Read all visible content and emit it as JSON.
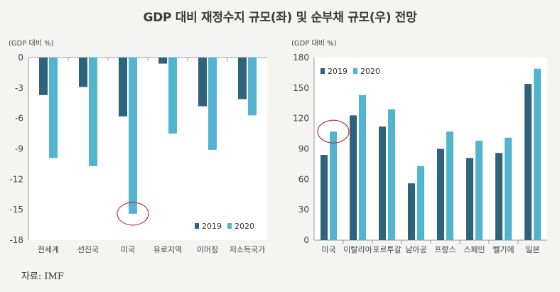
{
  "title": "GDP 대비 재정수지 규모(좌) 및 순부채 규모(우) 전망",
  "source": "자료: IMF",
  "colors": {
    "s2019": "#2f627c",
    "s2020": "#52b5cf",
    "highlight": "#c0303a"
  },
  "chart_data": [
    {
      "type": "bar",
      "unit_label": "(GDP 대비 %)",
      "categories": [
        "전세계",
        "선진국",
        "미국",
        "유로지역",
        "이머징",
        "저소득국가"
      ],
      "series": [
        {
          "name": "2019",
          "values": [
            -3.7,
            -2.9,
            -5.8,
            -0.6,
            -4.8,
            -4.1
          ]
        },
        {
          "name": "2020",
          "values": [
            -9.9,
            -10.7,
            -15.4,
            -7.5,
            -9.1,
            -5.7
          ]
        }
      ],
      "ylim": [
        -18,
        0
      ],
      "yticks": [
        0,
        -3,
        -6,
        -9,
        -12,
        -15,
        -18
      ],
      "legend_position": "bottom-right",
      "annotation": {
        "category": "미국",
        "series": "2020",
        "shape": "circle"
      }
    },
    {
      "type": "bar",
      "unit_label": "(GDP 대비 %)",
      "categories": [
        "미국",
        "이탈리아",
        "포르투갈",
        "남아공",
        "프랑스",
        "스페인",
        "벨기에",
        "일본"
      ],
      "series": [
        {
          "name": "2019",
          "values": [
            84,
            123,
            112,
            56,
            90,
            81,
            86,
            154
          ]
        },
        {
          "name": "2020",
          "values": [
            107,
            143,
            129,
            73,
            107,
            98,
            101,
            169
          ]
        }
      ],
      "ylim": [
        0,
        180
      ],
      "yticks": [
        0,
        30,
        60,
        90,
        120,
        150,
        180
      ],
      "legend_position": "top-left",
      "annotation": {
        "category": "미국",
        "series": "2020",
        "shape": "circle"
      }
    }
  ]
}
